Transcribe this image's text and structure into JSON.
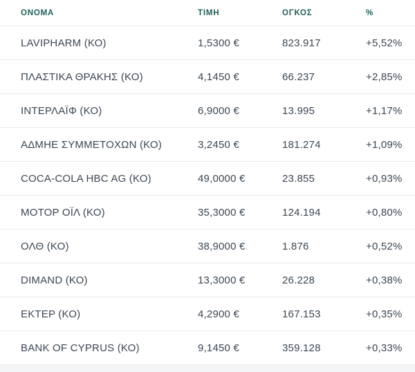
{
  "table": {
    "columns": [
      {
        "id": "name",
        "label": "ΟΝΟΜΑ"
      },
      {
        "id": "price",
        "label": "ΤΙΜΗ"
      },
      {
        "id": "volume",
        "label": "ΟΓΚΟΣ"
      },
      {
        "id": "change",
        "label": "%"
      }
    ],
    "rows": [
      {
        "name": "LAVIPHARM (ΚΟ)",
        "price": "1,5300 €",
        "volume": "823.917",
        "change": "+5,52%"
      },
      {
        "name": "ΠΛΑΣΤΙΚΑ ΘΡΑΚΗΣ (ΚΟ)",
        "price": "4,1450 €",
        "volume": "66.237",
        "change": "+2,85%"
      },
      {
        "name": "ΙΝΤΕΡΛΑΪΦ (ΚΟ)",
        "price": "6,9000 €",
        "volume": "13.995",
        "change": "+1,17%"
      },
      {
        "name": "ΑΔΜΗΕ ΣΥΜΜΕΤΟΧΩΝ (ΚΟ)",
        "price": "3,2450 €",
        "volume": "181.274",
        "change": "+1,09%"
      },
      {
        "name": "COCA-COLA HBC AG (ΚΟ)",
        "price": "49,0000 €",
        "volume": "23.855",
        "change": "+0,93%"
      },
      {
        "name": "ΜΟΤΟΡ ΟΪΛ (ΚΟ)",
        "price": "35,3000 €",
        "volume": "124.194",
        "change": "+0,80%"
      },
      {
        "name": "ΟΛΘ (ΚΟ)",
        "price": "38,9000 €",
        "volume": "1.876",
        "change": "+0,52%"
      },
      {
        "name": "DIMAND (ΚΟ)",
        "price": "13,3000 €",
        "volume": "26.228",
        "change": "+0,38%"
      },
      {
        "name": "ΕΚΤΕΡ (ΚΟ)",
        "price": "4,2900 €",
        "volume": "167.153",
        "change": "+0,35%"
      },
      {
        "name": "BANK OF CYPRUS (ΚΟ)",
        "price": "9,1450 €",
        "volume": "359.128",
        "change": "+0,33%"
      }
    ]
  },
  "colors": {
    "header_text": "#1e5f57",
    "row_text": "#3b4653",
    "divider": "#e8eaec",
    "footer_strip": "#f4f5f6",
    "background": "#ffffff"
  }
}
